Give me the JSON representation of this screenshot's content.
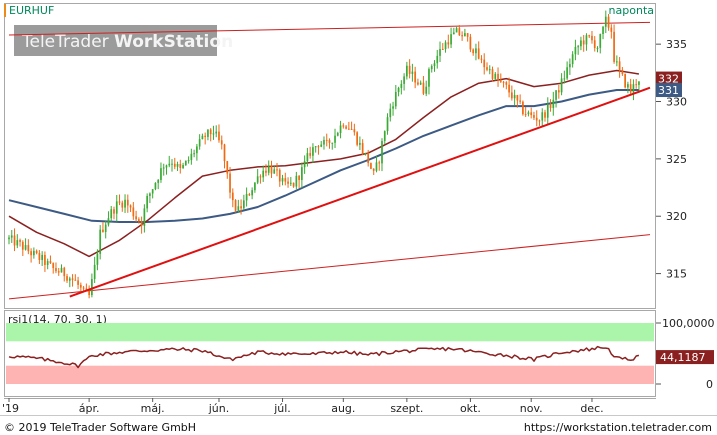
{
  "header": {
    "symbol": "EURHUF",
    "period": "naponta",
    "watermark_brand": "TeleTrader ",
    "watermark_product": "WorkStation"
  },
  "footer": {
    "copyright": "© 2019 TeleTrader Software GmbH",
    "url": "https://workstation.teletrader.com"
  },
  "colors": {
    "candle_up": "#3aaa35",
    "candle_down": "#ee6a14",
    "ma_fast": "#8b2020",
    "ma_slow": "#3c5a84",
    "trend_line": "#e01010",
    "channel_line": "#cc2020",
    "rsi_line": "#8b2020",
    "rsi_overbought_zone": "#aaf5aa",
    "rsi_oversold_zone": "#ffb4b4"
  },
  "chart_data": [
    {
      "type": "candlestick",
      "title": "EURHUF",
      "x_labels": [
        "'19",
        "ápr.",
        "máj.",
        "jún.",
        "júl.",
        "aug.",
        "szept.",
        "okt.",
        "nov.",
        "dec."
      ],
      "yticks": [
        315,
        320,
        325,
        330,
        335
      ],
      "ylim": [
        312,
        338.5
      ],
      "grid": false,
      "last_values": {
        "ma_fast": "332",
        "ma_slow": "331"
      },
      "close_series": [
        [
          0,
          318.0
        ],
        [
          4,
          317.5
        ],
        [
          8,
          316.8
        ],
        [
          12,
          316.2
        ],
        [
          16,
          315.4
        ],
        [
          20,
          315.0
        ],
        [
          24,
          314.3
        ],
        [
          27,
          313.3
        ],
        [
          29,
          313.0
        ],
        [
          31,
          315.5
        ],
        [
          33,
          318.5
        ],
        [
          36,
          320.0
        ],
        [
          39,
          321.0
        ],
        [
          42,
          321.3
        ],
        [
          44,
          320.6
        ],
        [
          46,
          319.9
        ],
        [
          48,
          319.5
        ],
        [
          50,
          321.5
        ],
        [
          53,
          323.0
        ],
        [
          56,
          324.5
        ],
        [
          59,
          324.8
        ],
        [
          62,
          324.0
        ],
        [
          65,
          324.9
        ],
        [
          68,
          326.0
        ],
        [
          71,
          327.0
        ],
        [
          74,
          327.4
        ],
        [
          77,
          326.0
        ],
        [
          79,
          323.5
        ],
        [
          81,
          321.0
        ],
        [
          83,
          320.5
        ],
        [
          85,
          321.2
        ],
        [
          88,
          322.5
        ],
        [
          91,
          323.8
        ],
        [
          94,
          324.3
        ],
        [
          97,
          323.6
        ],
        [
          100,
          322.6
        ],
        [
          103,
          322.8
        ],
        [
          106,
          324.0
        ],
        [
          109,
          325.6
        ],
        [
          112,
          326.4
        ],
        [
          115,
          326.2
        ],
        [
          118,
          327.1
        ],
        [
          121,
          328.2
        ],
        [
          124,
          327.6
        ],
        [
          127,
          326.2
        ],
        [
          130,
          324.8
        ],
        [
          132,
          323.6
        ],
        [
          134,
          325.0
        ],
        [
          136,
          327.6
        ],
        [
          138,
          329.4
        ],
        [
          141,
          331.2
        ],
        [
          144,
          332.7
        ],
        [
          147,
          332.0
        ],
        [
          150,
          331.0
        ],
        [
          153,
          333.2
        ],
        [
          156,
          334.4
        ],
        [
          159,
          335.4
        ],
        [
          162,
          336.0
        ],
        [
          165,
          335.7
        ],
        [
          168,
          334.6
        ],
        [
          171,
          333.4
        ],
        [
          174,
          332.7
        ],
        [
          177,
          331.8
        ],
        [
          180,
          331.2
        ],
        [
          183,
          330.2
        ],
        [
          186,
          329.2
        ],
        [
          189,
          328.7
        ],
        [
          192,
          328.5
        ],
        [
          195,
          329.3
        ],
        [
          198,
          330.6
        ],
        [
          201,
          332.2
        ],
        [
          204,
          334.0
        ],
        [
          207,
          335.2
        ],
        [
          210,
          335.5
        ],
        [
          213,
          334.8
        ],
        [
          215,
          336.2
        ],
        [
          216,
          337.0
        ],
        [
          218,
          336.2
        ],
        [
          219,
          333.8
        ],
        [
          221,
          332.5
        ],
        [
          223,
          331.6
        ],
        [
          225,
          330.9
        ],
        [
          226,
          331.3
        ],
        [
          227,
          331.7
        ],
        [
          228,
          332.0
        ]
      ],
      "ma_fast": [
        [
          0,
          320.0
        ],
        [
          10,
          318.6
        ],
        [
          20,
          317.6
        ],
        [
          29,
          316.5
        ],
        [
          40,
          317.9
        ],
        [
          50,
          319.6
        ],
        [
          60,
          321.6
        ],
        [
          70,
          323.5
        ],
        [
          80,
          324.0
        ],
        [
          90,
          324.3
        ],
        [
          100,
          324.4
        ],
        [
          110,
          324.7
        ],
        [
          120,
          325.0
        ],
        [
          130,
          325.5
        ],
        [
          140,
          326.7
        ],
        [
          150,
          328.6
        ],
        [
          160,
          330.4
        ],
        [
          170,
          331.6
        ],
        [
          180,
          332.0
        ],
        [
          190,
          331.3
        ],
        [
          200,
          331.6
        ],
        [
          210,
          332.3
        ],
        [
          220,
          332.7
        ],
        [
          228,
          332.4
        ]
      ],
      "ma_slow": [
        [
          0,
          321.4
        ],
        [
          10,
          320.8
        ],
        [
          20,
          320.2
        ],
        [
          30,
          319.6
        ],
        [
          40,
          319.5
        ],
        [
          50,
          319.5
        ],
        [
          60,
          319.6
        ],
        [
          70,
          319.8
        ],
        [
          80,
          320.2
        ],
        [
          90,
          320.8
        ],
        [
          100,
          321.8
        ],
        [
          110,
          322.9
        ],
        [
          120,
          324.0
        ],
        [
          130,
          324.9
        ],
        [
          140,
          325.9
        ],
        [
          150,
          327.0
        ],
        [
          160,
          327.9
        ],
        [
          170,
          328.8
        ],
        [
          180,
          329.6
        ],
        [
          190,
          329.6
        ],
        [
          200,
          330.0
        ],
        [
          210,
          330.6
        ],
        [
          220,
          331.0
        ],
        [
          228,
          331.0
        ]
      ],
      "trend_line": [
        [
          22,
          313.0
        ],
        [
          232,
          331.2
        ]
      ],
      "channel_upper": [
        [
          0,
          335.8
        ],
        [
          232,
          336.9
        ]
      ],
      "channel_lower": [
        [
          0,
          312.8
        ],
        [
          232,
          318.4
        ]
      ]
    },
    {
      "type": "line",
      "title": "rsi1(14, 70, 30, 1)",
      "yticks_labels": [
        "100,0000",
        "0"
      ],
      "ylim": [
        0,
        100
      ],
      "overbought": 70,
      "oversold": 30,
      "last_value": "44,1187",
      "values": [
        [
          0,
          46
        ],
        [
          10,
          42
        ],
        [
          20,
          35
        ],
        [
          25,
          30
        ],
        [
          30,
          47
        ],
        [
          40,
          52
        ],
        [
          50,
          55
        ],
        [
          60,
          57
        ],
        [
          70,
          55
        ],
        [
          80,
          40
        ],
        [
          90,
          52
        ],
        [
          100,
          50
        ],
        [
          110,
          49
        ],
        [
          120,
          53
        ],
        [
          130,
          48
        ],
        [
          140,
          53
        ],
        [
          150,
          56
        ],
        [
          160,
          58
        ],
        [
          170,
          52
        ],
        [
          180,
          47
        ],
        [
          190,
          40
        ],
        [
          200,
          52
        ],
        [
          210,
          57
        ],
        [
          216,
          61
        ],
        [
          220,
          42
        ],
        [
          224,
          40
        ],
        [
          228,
          44
        ]
      ]
    }
  ]
}
